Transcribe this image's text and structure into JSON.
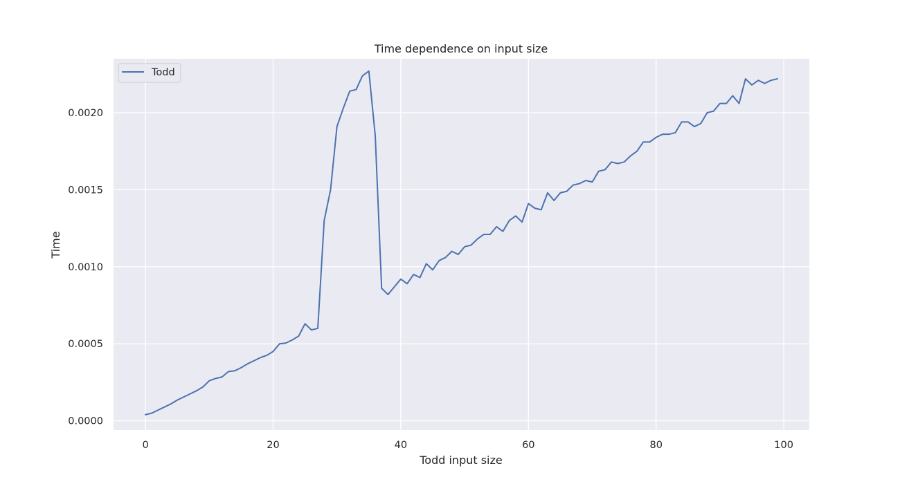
{
  "chart_data": {
    "type": "line",
    "title": "Time dependence on input size",
    "xlabel": "Todd input size",
    "ylabel": "Time",
    "xlim": [
      -5,
      104
    ],
    "ylim": [
      -6e-05,
      0.00235
    ],
    "xticks": [
      0,
      20,
      40,
      60,
      80,
      100
    ],
    "xtick_labels": [
      "0",
      "20",
      "40",
      "60",
      "80",
      "100"
    ],
    "yticks": [
      0.0,
      0.0005,
      0.001,
      0.0015,
      0.002
    ],
    "ytick_labels": [
      "0.0000",
      "0.0005",
      "0.0010",
      "0.0015",
      "0.0020"
    ],
    "grid": true,
    "legend_position": "top-left",
    "colors": {
      "background": "#eaeaf2",
      "grid": "#ffffff",
      "line": "#4c72b0"
    },
    "series": [
      {
        "name": "Todd",
        "x": [
          0,
          1,
          2,
          3,
          4,
          5,
          6,
          7,
          8,
          9,
          10,
          11,
          12,
          13,
          14,
          15,
          16,
          17,
          18,
          19,
          20,
          21,
          22,
          23,
          24,
          25,
          26,
          27,
          28,
          29,
          30,
          31,
          32,
          33,
          34,
          35,
          36,
          37,
          38,
          39,
          40,
          41,
          42,
          43,
          44,
          45,
          46,
          47,
          48,
          49,
          50,
          51,
          52,
          53,
          54,
          55,
          56,
          57,
          58,
          59,
          60,
          61,
          62,
          63,
          64,
          65,
          66,
          67,
          68,
          69,
          70,
          71,
          72,
          73,
          74,
          75,
          76,
          77,
          78,
          79,
          80,
          81,
          82,
          83,
          84,
          85,
          86,
          87,
          88,
          89,
          90,
          91,
          92,
          93,
          94,
          95,
          96,
          97,
          98,
          99
        ],
        "values": [
          4e-05,
          5e-05,
          7e-05,
          9e-05,
          0.00011,
          0.000135,
          0.000155,
          0.000175,
          0.000195,
          0.00022,
          0.00026,
          0.000275,
          0.000285,
          0.00032,
          0.000325,
          0.000345,
          0.00037,
          0.00039,
          0.00041,
          0.000425,
          0.00045,
          0.0005,
          0.000505,
          0.000525,
          0.00055,
          0.00063,
          0.00059,
          0.0006,
          0.0013,
          0.0015,
          0.00191,
          0.00203,
          0.00214,
          0.00215,
          0.00224,
          0.00227,
          0.00185,
          0.00086,
          0.00082,
          0.00087,
          0.00092,
          0.00089,
          0.00095,
          0.00093,
          0.00102,
          0.00098,
          0.00104,
          0.00106,
          0.0011,
          0.00108,
          0.00113,
          0.00114,
          0.00118,
          0.00121,
          0.00121,
          0.00126,
          0.00123,
          0.0013,
          0.00133,
          0.00129,
          0.00141,
          0.00138,
          0.00137,
          0.00148,
          0.00143,
          0.00148,
          0.00149,
          0.00153,
          0.00154,
          0.00156,
          0.00155,
          0.00162,
          0.00163,
          0.00168,
          0.00167,
          0.00168,
          0.00172,
          0.00175,
          0.00181,
          0.00181,
          0.00184,
          0.00186,
          0.00186,
          0.00187,
          0.00194,
          0.00194,
          0.00191,
          0.00193,
          0.002,
          0.00201,
          0.00206,
          0.00206,
          0.00211,
          0.00206,
          0.00222,
          0.00218,
          0.00221,
          0.00219,
          0.00221,
          0.00222
        ]
      }
    ]
  }
}
